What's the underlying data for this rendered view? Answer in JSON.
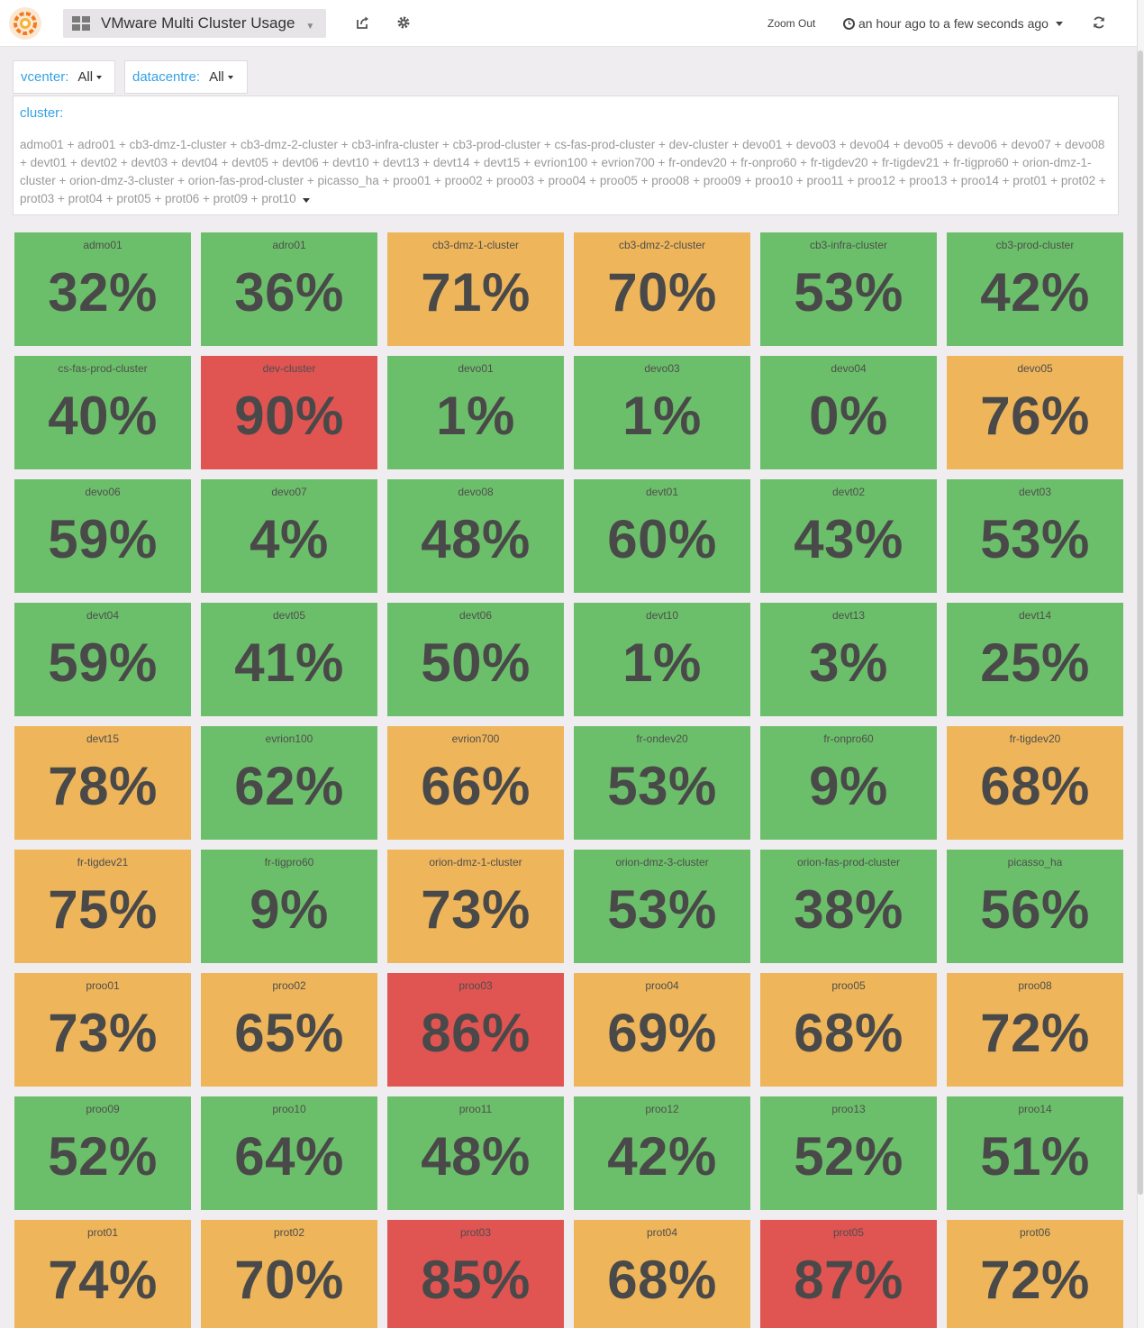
{
  "navbar": {
    "dashboard_title": "VMware Multi Cluster Usage",
    "zoom_out_label": "Zoom Out",
    "time_range_label": "an hour ago to a few seconds ago",
    "icons": [
      "grafana-logo-icon",
      "dashboard-grid-icon",
      "share-icon",
      "gear-icon",
      "clock-icon",
      "refresh-icon"
    ]
  },
  "variables": {
    "vcenter": {
      "label": "vcenter:",
      "value": "All"
    },
    "datacentre": {
      "label": "datacentre:",
      "value": "All"
    },
    "cluster": {
      "label": "cluster:",
      "value": "admo01 + adro01 + cb3-dmz-1-cluster + cb3-dmz-2-cluster + cb3-infra-cluster + cb3-prod-cluster + cs-fas-prod-cluster + dev-cluster + devo01 + devo03 + devo04 + devo05 + devo06 + devo07 + devo08 + devt01 + devt02 + devt03 + devt04 + devt05 + devt06 + devt10 + devt13 + devt14 + devt15 + evrion100 + evrion700 + fr-ondev20 + fr-onpro60 + fr-tigdev20 + fr-tigdev21 + fr-tigpro60 + orion-dmz-1-cluster + orion-dmz-3-cluster + orion-fas-prod-cluster + picasso_ha + proo01 + proo02 + proo03 + proo04 + proo05 + proo08 + proo09 + proo10 + proo11 + proo12 + proo13 + proo14 + prot01 + prot02 + prot03 + prot04 + prot05 + prot06 + prot09 + prot10"
    }
  },
  "colors": {
    "ok": "#6cbf6a",
    "warning": "#eeb55a",
    "critical": "#e05452"
  },
  "panels": [
    {
      "title": "admo01",
      "value": "32%",
      "status": "green"
    },
    {
      "title": "adro01",
      "value": "36%",
      "status": "green"
    },
    {
      "title": "cb3-dmz-1-cluster",
      "value": "71%",
      "status": "orange"
    },
    {
      "title": "cb3-dmz-2-cluster",
      "value": "70%",
      "status": "orange"
    },
    {
      "title": "cb3-infra-cluster",
      "value": "53%",
      "status": "green"
    },
    {
      "title": "cb3-prod-cluster",
      "value": "42%",
      "status": "green"
    },
    {
      "title": "cs-fas-prod-cluster",
      "value": "40%",
      "status": "green"
    },
    {
      "title": "dev-cluster",
      "value": "90%",
      "status": "red"
    },
    {
      "title": "devo01",
      "value": "1%",
      "status": "green"
    },
    {
      "title": "devo03",
      "value": "1%",
      "status": "green"
    },
    {
      "title": "devo04",
      "value": "0%",
      "status": "green"
    },
    {
      "title": "devo05",
      "value": "76%",
      "status": "orange"
    },
    {
      "title": "devo06",
      "value": "59%",
      "status": "green"
    },
    {
      "title": "devo07",
      "value": "4%",
      "status": "green"
    },
    {
      "title": "devo08",
      "value": "48%",
      "status": "green"
    },
    {
      "title": "devt01",
      "value": "60%",
      "status": "green"
    },
    {
      "title": "devt02",
      "value": "43%",
      "status": "green"
    },
    {
      "title": "devt03",
      "value": "53%",
      "status": "green"
    },
    {
      "title": "devt04",
      "value": "59%",
      "status": "green"
    },
    {
      "title": "devt05",
      "value": "41%",
      "status": "green"
    },
    {
      "title": "devt06",
      "value": "50%",
      "status": "green"
    },
    {
      "title": "devt10",
      "value": "1%",
      "status": "green"
    },
    {
      "title": "devt13",
      "value": "3%",
      "status": "green"
    },
    {
      "title": "devt14",
      "value": "25%",
      "status": "green"
    },
    {
      "title": "devt15",
      "value": "78%",
      "status": "orange"
    },
    {
      "title": "evrion100",
      "value": "62%",
      "status": "green"
    },
    {
      "title": "evrion700",
      "value": "66%",
      "status": "orange"
    },
    {
      "title": "fr-ondev20",
      "value": "53%",
      "status": "green"
    },
    {
      "title": "fr-onpro60",
      "value": "9%",
      "status": "green"
    },
    {
      "title": "fr-tigdev20",
      "value": "68%",
      "status": "orange"
    },
    {
      "title": "fr-tigdev21",
      "value": "75%",
      "status": "orange"
    },
    {
      "title": "fr-tigpro60",
      "value": "9%",
      "status": "green"
    },
    {
      "title": "orion-dmz-1-cluster",
      "value": "73%",
      "status": "orange"
    },
    {
      "title": "orion-dmz-3-cluster",
      "value": "53%",
      "status": "green"
    },
    {
      "title": "orion-fas-prod-cluster",
      "value": "38%",
      "status": "green"
    },
    {
      "title": "picasso_ha",
      "value": "56%",
      "status": "green"
    },
    {
      "title": "proo01",
      "value": "73%",
      "status": "orange"
    },
    {
      "title": "proo02",
      "value": "65%",
      "status": "orange"
    },
    {
      "title": "proo03",
      "value": "86%",
      "status": "red"
    },
    {
      "title": "proo04",
      "value": "69%",
      "status": "orange"
    },
    {
      "title": "proo05",
      "value": "68%",
      "status": "orange"
    },
    {
      "title": "proo08",
      "value": "72%",
      "status": "orange"
    },
    {
      "title": "proo09",
      "value": "52%",
      "status": "green"
    },
    {
      "title": "proo10",
      "value": "64%",
      "status": "green"
    },
    {
      "title": "proo11",
      "value": "48%",
      "status": "green"
    },
    {
      "title": "proo12",
      "value": "42%",
      "status": "green"
    },
    {
      "title": "proo13",
      "value": "52%",
      "status": "green"
    },
    {
      "title": "proo14",
      "value": "51%",
      "status": "green"
    },
    {
      "title": "prot01",
      "value": "74%",
      "status": "orange"
    },
    {
      "title": "prot02",
      "value": "70%",
      "status": "orange"
    },
    {
      "title": "prot03",
      "value": "85%",
      "status": "red"
    },
    {
      "title": "prot04",
      "value": "68%",
      "status": "orange"
    },
    {
      "title": "prot05",
      "value": "87%",
      "status": "red"
    },
    {
      "title": "prot06",
      "value": "72%",
      "status": "orange"
    }
  ]
}
